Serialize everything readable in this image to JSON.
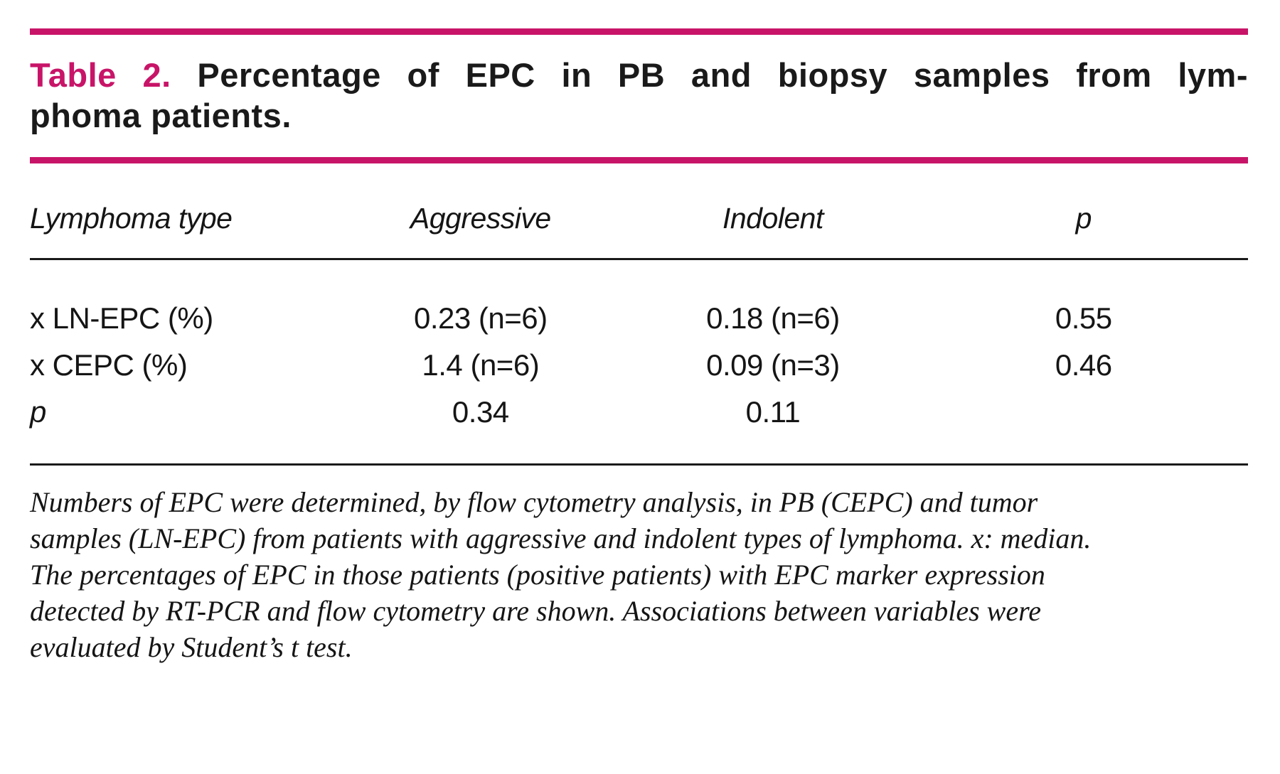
{
  "accent_color": "#C81468",
  "title": {
    "label": "Table 2.",
    "line1": "Percentage of EPC in PB and biopsy samples from lym-",
    "line2": "phoma patients."
  },
  "table": {
    "headers": [
      "Lymphoma type",
      "Aggressive",
      "Indolent",
      "p"
    ],
    "rows": [
      [
        "x LN-EPC (%)",
        "0.23 (n=6)",
        "0.18 (n=6)",
        "0.55"
      ],
      [
        "x CEPC (%)",
        "1.4 (n=6)",
        "0.09 (n=3)",
        "0.46"
      ],
      [
        "p",
        "0.34",
        "0.11",
        ""
      ]
    ]
  },
  "footnote": "Numbers of EPC were determined, by flow cytometry analysis, in PB (CEPC) and tumor samples (LN-EPC) from patients with aggressive and indolent types of lymphoma. x: median. The percentages of EPC in those patients (positive patients) with EPC marker expression detected by RT-PCR and flow cytometry are shown. Associations between variables were evaluated by Student’s t test."
}
